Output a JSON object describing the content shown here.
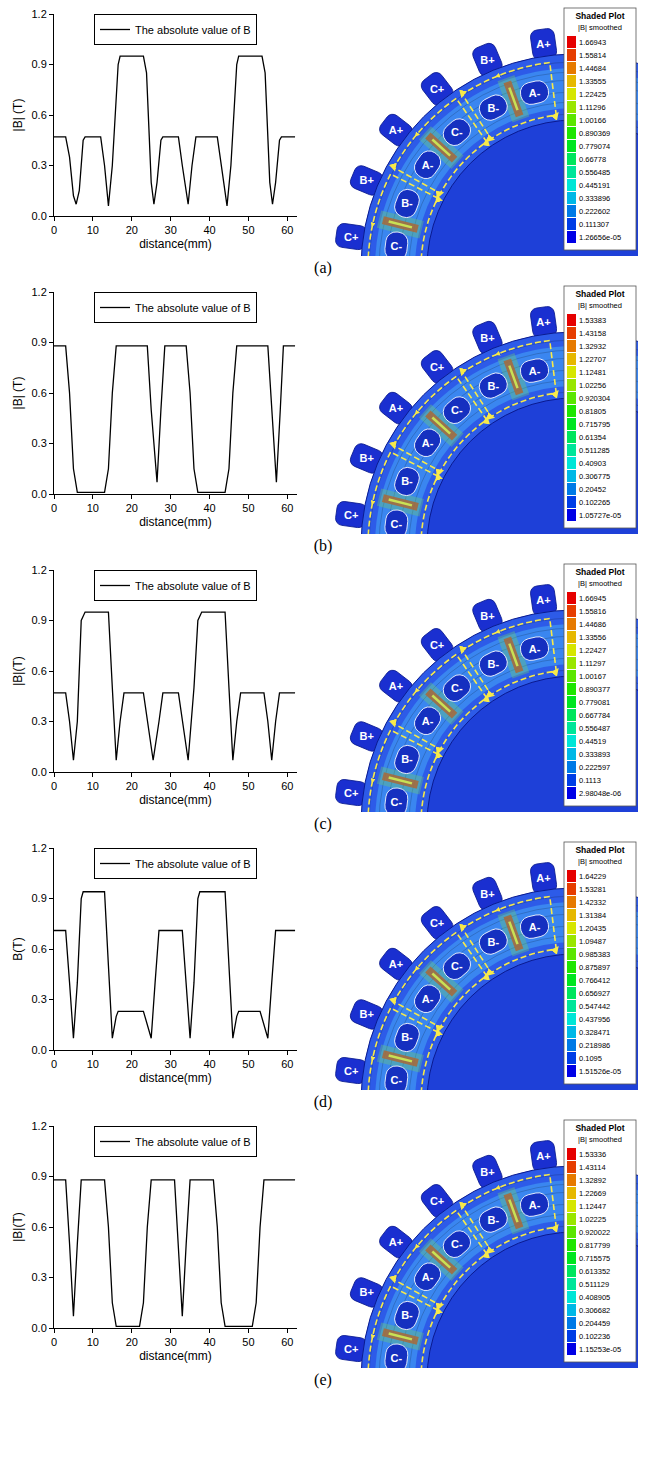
{
  "chart_data": [
    {
      "type": "line",
      "xlabel": "distance(mm)",
      "ylabel": "|B| (T)",
      "x": [
        0,
        3,
        4,
        5,
        5.7,
        6.5,
        7.5,
        8,
        12,
        13,
        14,
        15,
        16.5,
        17,
        23,
        23.8,
        25,
        25.7,
        26.5,
        27.5,
        28,
        32,
        33,
        34.5,
        35.5,
        36.5,
        42,
        43,
        44.5,
        45.5,
        47,
        47.5,
        53.5,
        54.3,
        55.5,
        56.2,
        57,
        58,
        58.5,
        62
      ],
      "series": [
        {
          "name": "The absolute value of B",
          "color": "#000000",
          "values": [
            0.47,
            0.47,
            0.35,
            0.12,
            0.07,
            0.15,
            0.45,
            0.47,
            0.47,
            0.3,
            0.06,
            0.3,
            0.9,
            0.95,
            0.95,
            0.85,
            0.2,
            0.07,
            0.2,
            0.45,
            0.47,
            0.47,
            0.3,
            0.07,
            0.3,
            0.47,
            0.47,
            0.3,
            0.06,
            0.3,
            0.9,
            0.95,
            0.95,
            0.85,
            0.2,
            0.07,
            0.2,
            0.45,
            0.47,
            0.47
          ]
        }
      ],
      "xlim": [
        0,
        62.5
      ],
      "xticks": [
        0,
        10,
        20,
        30,
        40,
        50,
        60
      ],
      "ylim": [
        0,
        1.2
      ],
      "yticks": [
        {
          "value": 0,
          "label": "0.0"
        },
        {
          "value": 0.3,
          "label": "0.3"
        },
        {
          "value": 0.6,
          "label": "0.6"
        },
        {
          "value": 0.9,
          "label": "0.9"
        },
        {
          "value": 1.2,
          "label": "1.2"
        }
      ],
      "grid": false,
      "legend": "top"
    },
    {
      "type": "line",
      "xlabel": "distance(mm)",
      "ylabel": "|B| (T)",
      "x": [
        0,
        3,
        4,
        5,
        6,
        13,
        14,
        15,
        16,
        24,
        25,
        26.5,
        27.5,
        28.5,
        34,
        35,
        36,
        37,
        44,
        45,
        46,
        47,
        55,
        56,
        57.2,
        58.2,
        59,
        62
      ],
      "series": [
        {
          "name": "The absolute value of B",
          "color": "#000000",
          "values": [
            0.88,
            0.88,
            0.6,
            0.15,
            0.01,
            0.01,
            0.15,
            0.6,
            0.88,
            0.88,
            0.5,
            0.07,
            0.5,
            0.88,
            0.88,
            0.6,
            0.15,
            0.01,
            0.01,
            0.15,
            0.6,
            0.88,
            0.88,
            0.5,
            0.07,
            0.5,
            0.88,
            0.88
          ]
        }
      ],
      "xlim": [
        0,
        62.5
      ],
      "xticks": [
        0,
        10,
        20,
        30,
        40,
        50,
        60
      ],
      "ylim": [
        0,
        1.2
      ],
      "yticks": [
        {
          "value": 0,
          "label": "0.0"
        },
        {
          "value": 0.3,
          "label": "0.3"
        },
        {
          "value": 0.6,
          "label": "0.6"
        },
        {
          "value": 0.9,
          "label": "0.9"
        },
        {
          "value": 1.2,
          "label": "1.2"
        }
      ],
      "grid": false,
      "legend": "top"
    },
    {
      "type": "line",
      "xlabel": "distance(mm)",
      "ylabel": "|B|(T)",
      "x": [
        0,
        3,
        4,
        5,
        6,
        7,
        8,
        14,
        15,
        16,
        17,
        18,
        23,
        24,
        25.5,
        27,
        28,
        32,
        33,
        34.5,
        36,
        37,
        38,
        44,
        45,
        46,
        47,
        48,
        54,
        55,
        56,
        57,
        58,
        62
      ],
      "series": [
        {
          "name": "The absolute value of B",
          "color": "#000000",
          "values": [
            0.47,
            0.47,
            0.3,
            0.07,
            0.3,
            0.9,
            0.95,
            0.95,
            0.5,
            0.07,
            0.3,
            0.47,
            0.47,
            0.3,
            0.07,
            0.3,
            0.47,
            0.47,
            0.3,
            0.07,
            0.5,
            0.9,
            0.95,
            0.95,
            0.5,
            0.07,
            0.3,
            0.47,
            0.47,
            0.3,
            0.07,
            0.3,
            0.47,
            0.47
          ]
        }
      ],
      "xlim": [
        0,
        62.5
      ],
      "xticks": [
        0,
        10,
        20,
        30,
        40,
        50,
        60
      ],
      "ylim": [
        0,
        1.2
      ],
      "yticks": [
        {
          "value": 0,
          "label": "0.0"
        },
        {
          "value": 0.3,
          "label": "0.3"
        },
        {
          "value": 0.6,
          "label": "0.6"
        },
        {
          "value": 0.9,
          "label": "0.9"
        },
        {
          "value": 1.2,
          "label": "1.2"
        }
      ],
      "grid": false,
      "legend": "top"
    },
    {
      "type": "line",
      "xlabel": "distance(mm)",
      "ylabel": "B(T)",
      "x": [
        0,
        3,
        4,
        5,
        6,
        7,
        7.5,
        13,
        14,
        15,
        16,
        16.5,
        23,
        24,
        25,
        26,
        27,
        33,
        34,
        35,
        36,
        37,
        37.5,
        44,
        45,
        46,
        47,
        47.5,
        53,
        54,
        55,
        56,
        57,
        62
      ],
      "series": [
        {
          "name": "The absolute value of B",
          "color": "#000000",
          "values": [
            0.71,
            0.71,
            0.4,
            0.07,
            0.4,
            0.9,
            0.94,
            0.94,
            0.5,
            0.07,
            0.2,
            0.23,
            0.23,
            0.15,
            0.07,
            0.4,
            0.71,
            0.71,
            0.4,
            0.07,
            0.4,
            0.9,
            0.94,
            0.94,
            0.5,
            0.07,
            0.2,
            0.23,
            0.23,
            0.15,
            0.07,
            0.4,
            0.71,
            0.71
          ]
        }
      ],
      "xlim": [
        0,
        62.5
      ],
      "xticks": [
        0,
        10,
        20,
        30,
        40,
        50,
        60
      ],
      "ylim": [
        0,
        1.2
      ],
      "yticks": [
        {
          "value": 0,
          "label": "0.0"
        },
        {
          "value": 0.3,
          "label": "0.3"
        },
        {
          "value": 0.6,
          "label": "0.6"
        },
        {
          "value": 0.9,
          "label": "0.9"
        },
        {
          "value": 1.2,
          "label": "1.2"
        }
      ],
      "grid": false,
      "legend": "top"
    },
    {
      "type": "line",
      "xlabel": "distance(mm)",
      "ylabel": "|B|(T)",
      "x": [
        0,
        3,
        4,
        5,
        6,
        7,
        13,
        14,
        15,
        16,
        22,
        23,
        24,
        25,
        31,
        32,
        33,
        34,
        35,
        41,
        42,
        43,
        44,
        51,
        52,
        53,
        54,
        62
      ],
      "series": [
        {
          "name": "The absolute value of B",
          "color": "#000000",
          "values": [
            0.88,
            0.88,
            0.5,
            0.07,
            0.5,
            0.88,
            0.88,
            0.6,
            0.15,
            0.01,
            0.01,
            0.15,
            0.6,
            0.88,
            0.88,
            0.5,
            0.07,
            0.5,
            0.88,
            0.88,
            0.6,
            0.15,
            0.01,
            0.01,
            0.15,
            0.6,
            0.88,
            0.88
          ]
        }
      ],
      "xlim": [
        0,
        62.5
      ],
      "xticks": [
        0,
        10,
        20,
        30,
        40,
        50,
        60
      ],
      "ylim": [
        0,
        1.2
      ],
      "yticks": [
        {
          "value": 0,
          "label": "0.0"
        },
        {
          "value": 0.3,
          "label": "0.3"
        },
        {
          "value": 0.6,
          "label": "0.6"
        },
        {
          "value": 0.9,
          "label": "0.9"
        },
        {
          "value": 1.2,
          "label": "1.2"
        }
      ],
      "grid": false,
      "legend": "top"
    }
  ],
  "figures": [
    {
      "panel": "(a)",
      "teeth": [
        "A+",
        "B+",
        "C+",
        "A+",
        "B+",
        "C+"
      ],
      "coils": [
        "A-",
        "B-",
        "C-",
        "A-",
        "B-",
        "C-"
      ],
      "colorbar": {
        "title": "Shaded Plot",
        "subtitle": "|B| smoothed",
        "labels": [
          "1.66943",
          "1.55814",
          "1.44684",
          "1.33555",
          "1.22425",
          "1.11296",
          "1.00166",
          "0.890369",
          "0.779074",
          "0.66778",
          "0.556485",
          "0.445191",
          "0.333896",
          "0.222602",
          "0.111307",
          "1.26656e-05"
        ]
      }
    },
    {
      "panel": "(b)",
      "teeth": [
        "A+",
        "B+",
        "C+",
        "A+",
        "B+",
        "C+"
      ],
      "coils": [
        "A-",
        "B-",
        "C-",
        "A-",
        "B-",
        "C-"
      ],
      "colorbar": {
        "title": "Shaded Plot",
        "subtitle": "|B| smoothed",
        "labels": [
          "1.53383",
          "1.43158",
          "1.32932",
          "1.22707",
          "1.12481",
          "1.02256",
          "0.920304",
          "0.81805",
          "0.715795",
          "0.61354",
          "0.511285",
          "0.40903",
          "0.306775",
          "0.20452",
          "0.102265",
          "1.05727e-05"
        ]
      }
    },
    {
      "panel": "(c)",
      "teeth": [
        "A+",
        "B+",
        "C+",
        "A+",
        "B+",
        "C+"
      ],
      "coils": [
        "A-",
        "B-",
        "C-",
        "A-",
        "B-",
        "C-"
      ],
      "colorbar": {
        "title": "Shaded Plot",
        "subtitle": "|B| smoothed",
        "labels": [
          "1.66945",
          "1.55816",
          "1.44686",
          "1.33556",
          "1.22427",
          "1.11297",
          "1.00167",
          "0.890377",
          "0.779081",
          "0.667784",
          "0.556487",
          "0.44519",
          "0.333893",
          "0.222597",
          "0.1113",
          "2.98048e-06"
        ]
      }
    },
    {
      "panel": "(d)",
      "teeth": [
        "A+",
        "B+",
        "C+",
        "A+",
        "B+",
        "C+"
      ],
      "coils": [
        "A-",
        "B-",
        "C-",
        "A-",
        "B-",
        "C-"
      ],
      "colorbar": {
        "title": "Shaded Plot",
        "subtitle": "|B| smoothed",
        "labels": [
          "1.64229",
          "1.53281",
          "1.42332",
          "1.31384",
          "1.20435",
          "1.09487",
          "0.985383",
          "0.875897",
          "0.766412",
          "0.656927",
          "0.547442",
          "0.437956",
          "0.328471",
          "0.218986",
          "0.1095",
          "1.51526e-05"
        ]
      }
    },
    {
      "panel": "(e)",
      "teeth": [
        "A+",
        "B+",
        "C+",
        "A+",
        "B+",
        "C+"
      ],
      "coils": [
        "A-",
        "B-",
        "C-",
        "A-",
        "B-",
        "C-"
      ],
      "colorbar": {
        "title": "Shaded Plot",
        "subtitle": "|B| smoothed",
        "labels": [
          "1.53336",
          "1.43114",
          "1.32892",
          "1.22669",
          "1.12447",
          "1.02225",
          "0.920022",
          "0.817799",
          "0.715575",
          "0.613352",
          "0.511129",
          "0.408905",
          "0.306682",
          "0.204459",
          "0.102236",
          "1.15253e-05"
        ]
      }
    }
  ]
}
